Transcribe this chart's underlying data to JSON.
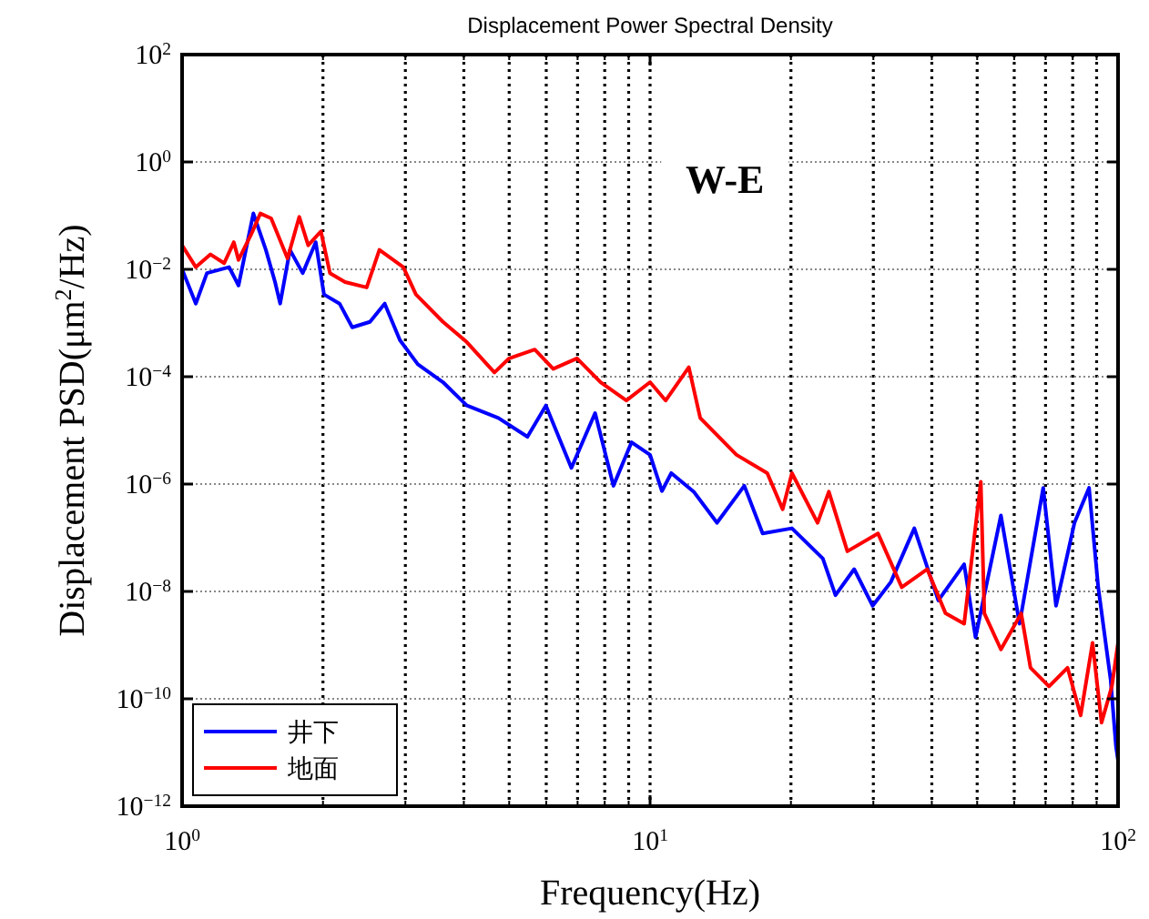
{
  "chart_data": {
    "type": "line",
    "title": "Displacement Power Spectral Density",
    "xlabel": "Frequency(Hz)",
    "ylabel": "Displacement PSD(μm$^{2}$/Hz)",
    "annotations": [
      "W-E"
    ],
    "log": "xy",
    "grid": true,
    "legend": "bottom left",
    "line_style": "solid",
    "xlim": [
      1,
      100
    ],
    "xticks": [
      {
        "value": 1,
        "label": "10$^{0}$"
      },
      {
        "value": 10,
        "label": "10$^{1}$"
      },
      {
        "value": 100,
        "label": "10$^{2}$"
      }
    ],
    "ylim": [
      1e-12,
      100
    ],
    "yticks": [
      {
        "value": 1e-12,
        "label": "10$^{−12}$"
      },
      {
        "value": 1e-10,
        "label": "10$^{−10}$"
      },
      {
        "value": 1e-08,
        "label": "10$^{−8}$"
      },
      {
        "value": 1e-06,
        "label": "10$^{−6}$"
      },
      {
        "value": 0.0001,
        "label": "10$^{−4}$"
      },
      {
        "value": 0.01,
        "label": "10$^{−2}$"
      },
      {
        "value": 1,
        "label": "10$^{0}$"
      },
      {
        "value": 100,
        "label": "10$^{2}$"
      }
    ],
    "series": [
      {
        "name": "井下",
        "color": "#0000ff",
        "x": [
          1.0,
          1.07,
          1.13,
          1.26,
          1.32,
          1.42,
          1.51,
          1.58,
          1.62,
          1.7,
          1.81,
          1.93,
          2.01,
          2.17,
          2.31,
          2.52,
          2.71,
          2.92,
          3.19,
          3.61,
          4.06,
          4.74,
          5.47,
          5.99,
          6.79,
          7.63,
          8.35,
          9.13,
          10.0,
          10.6,
          11.1,
          12.4,
          13.9,
          15.9,
          17.4,
          20.1,
          23.4,
          24.9,
          27.3,
          29.9,
          32.7,
          36.7,
          41.3,
          46.9,
          49.6,
          56.2,
          61.6,
          69.2,
          73.7,
          80.7,
          86.7,
          90.7,
          96.4,
          99,
          100
        ],
        "values": [
          0.01,
          0.0023,
          0.0085,
          0.011,
          0.005,
          0.11,
          0.023,
          0.0058,
          0.0023,
          0.023,
          0.0085,
          0.032,
          0.0034,
          0.0023,
          0.00083,
          0.00105,
          0.0023,
          0.00048,
          0.00017,
          7.9e-05,
          2.9e-05,
          1.7e-05,
          7.6e-06,
          2.9e-05,
          2e-06,
          2.1e-05,
          9.3e-07,
          6e-06,
          3.5e-06,
          7.4e-07,
          1.6e-06,
          7.2e-07,
          1.9e-07,
          9.3e-07,
          1.2e-07,
          1.5e-07,
          4.1e-08,
          8.5e-09,
          2.6e-08,
          5.4e-09,
          1.5e-08,
          1.5e-07,
          6.8e-09,
          3.2e-08,
          1.4e-09,
          2.6e-07,
          2.5e-09,
          8.5e-07,
          5.4e-09,
          1.9e-07,
          8.5e-07,
          1.2e-08,
          2.3e-10,
          1.3e-11,
          7.1e-12
        ]
      },
      {
        "name": "地面",
        "color": "#ff0000",
        "x": [
          1.0,
          1.07,
          1.15,
          1.23,
          1.29,
          1.32,
          1.41,
          1.47,
          1.55,
          1.68,
          1.78,
          1.86,
          1.98,
          2.07,
          2.23,
          2.48,
          2.64,
          2.97,
          3.16,
          3.61,
          4.06,
          4.65,
          5.0,
          5.67,
          6.21,
          6.98,
          7.84,
          8.9,
          10.0,
          10.8,
          12.1,
          12.8,
          15.3,
          17.8,
          19.2,
          20.1,
          22.8,
          24.1,
          26.4,
          30.7,
          34.5,
          39.1,
          42.8,
          46.9,
          50.9,
          51.8,
          56.2,
          62.1,
          65,
          71.2,
          78,
          83.2,
          88.2,
          92.2,
          97,
          100
        ],
        "values": [
          0.028,
          0.011,
          0.019,
          0.013,
          0.032,
          0.015,
          0.048,
          0.11,
          0.089,
          0.016,
          0.095,
          0.028,
          0.051,
          0.0085,
          0.0058,
          0.0046,
          0.023,
          0.011,
          0.0034,
          0.00105,
          0.00044,
          0.00012,
          0.00022,
          0.00032,
          0.00014,
          0.00022,
          7.9e-05,
          3.6e-05,
          7.9e-05,
          3.6e-05,
          0.00015,
          1.7e-05,
          3.5e-06,
          1.6e-06,
          3.4e-07,
          1.6e-06,
          1.9e-07,
          7.2e-07,
          5.6e-08,
          1.2e-07,
          1.2e-08,
          2.6e-08,
          3.9e-09,
          2.5e-09,
          1.1e-06,
          3.9e-09,
          8.3e-10,
          3.9e-09,
          3.8e-10,
          1.7e-10,
          3.8e-10,
          4.9e-11,
          1.1e-09,
          3.6e-11,
          1.7e-10,
          1.1e-09
        ]
      }
    ]
  }
}
